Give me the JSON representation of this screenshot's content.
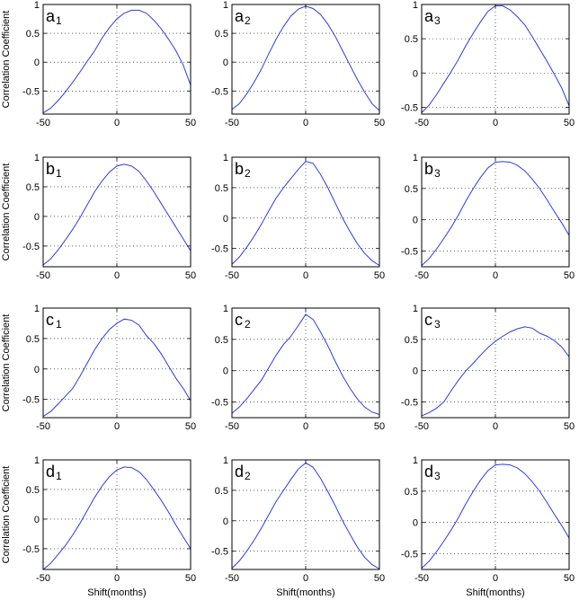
{
  "figure": {
    "ylabel": "Correlation Coefficient",
    "xlabel": "Shift(months)",
    "line_color": "#2b3fd8"
  },
  "chart_data": [
    {
      "type": "line",
      "panel": "a",
      "sub": "1",
      "xlim": [
        -50,
        50
      ],
      "ylim": [
        -0.9,
        1
      ],
      "xticks": [
        -50,
        0,
        50
      ],
      "yticks": [
        1,
        0.5,
        0,
        -0.5
      ],
      "grid": "dotted",
      "series": [
        {
          "x": [
            -50,
            -45,
            -40,
            -35,
            -30,
            -25,
            -20,
            -15,
            -10,
            -5,
            0,
            5,
            10,
            15,
            20,
            25,
            30,
            35,
            40,
            45,
            50
          ],
          "y": [
            -0.88,
            -0.8,
            -0.67,
            -0.52,
            -0.35,
            -0.17,
            0.02,
            0.2,
            0.42,
            0.6,
            0.75,
            0.85,
            0.9,
            0.9,
            0.85,
            0.73,
            0.58,
            0.4,
            0.2,
            -0.05,
            -0.4
          ]
        }
      ]
    },
    {
      "type": "line",
      "panel": "a",
      "sub": "2",
      "xlim": [
        -50,
        50
      ],
      "ylim": [
        -0.9,
        1
      ],
      "xticks": [
        -50,
        0,
        50
      ],
      "yticks": [
        1,
        0.5,
        0,
        -0.5
      ],
      "grid": "dotted",
      "series": [
        {
          "x": [
            -50,
            -45,
            -40,
            -35,
            -30,
            -25,
            -20,
            -15,
            -10,
            -5,
            0,
            5,
            10,
            15,
            20,
            25,
            30,
            35,
            40,
            45,
            50
          ],
          "y": [
            -0.82,
            -0.72,
            -0.55,
            -0.35,
            -0.12,
            0.15,
            0.4,
            0.62,
            0.8,
            0.92,
            0.97,
            0.93,
            0.83,
            0.66,
            0.45,
            0.2,
            -0.05,
            -0.3,
            -0.52,
            -0.72,
            -0.84
          ]
        }
      ]
    },
    {
      "type": "line",
      "panel": "a",
      "sub": "3",
      "xlim": [
        -50,
        50
      ],
      "ylim": [
        -0.6,
        1
      ],
      "xticks": [
        -50,
        0,
        50
      ],
      "yticks": [
        1,
        0.5,
        0,
        -0.5
      ],
      "grid": "dotted",
      "series": [
        {
          "x": [
            -50,
            -45,
            -40,
            -35,
            -30,
            -25,
            -20,
            -15,
            -10,
            -5,
            0,
            5,
            10,
            15,
            20,
            25,
            30,
            35,
            40,
            45,
            50
          ],
          "y": [
            -0.58,
            -0.47,
            -0.32,
            -0.15,
            0.02,
            0.2,
            0.4,
            0.58,
            0.75,
            0.9,
            0.98,
            0.98,
            0.92,
            0.82,
            0.7,
            0.53,
            0.35,
            0.17,
            -0.02,
            -0.22,
            -0.48
          ]
        }
      ]
    },
    {
      "type": "line",
      "panel": "b",
      "sub": "1",
      "xlim": [
        -50,
        50
      ],
      "ylim": [
        -0.85,
        1
      ],
      "xticks": [
        -50,
        0,
        50
      ],
      "yticks": [
        1,
        0.5,
        0,
        -0.5
      ],
      "grid": "dotted",
      "series": [
        {
          "x": [
            -50,
            -45,
            -40,
            -35,
            -30,
            -25,
            -20,
            -15,
            -10,
            -5,
            0,
            5,
            10,
            15,
            20,
            25,
            30,
            35,
            40,
            45,
            50
          ],
          "y": [
            -0.82,
            -0.72,
            -0.57,
            -0.4,
            -0.22,
            -0.02,
            0.2,
            0.42,
            0.6,
            0.75,
            0.85,
            0.88,
            0.85,
            0.76,
            0.6,
            0.42,
            0.22,
            0.02,
            -0.18,
            -0.38,
            -0.58
          ]
        }
      ]
    },
    {
      "type": "line",
      "panel": "b",
      "sub": "2",
      "xlim": [
        -50,
        50
      ],
      "ylim": [
        -0.8,
        1
      ],
      "xticks": [
        -50,
        0,
        50
      ],
      "yticks": [
        1,
        0.5,
        0,
        -0.5
      ],
      "grid": "dotted",
      "series": [
        {
          "x": [
            -50,
            -45,
            -40,
            -35,
            -30,
            -25,
            -20,
            -15,
            -10,
            -5,
            0,
            5,
            10,
            15,
            20,
            25,
            30,
            35,
            40,
            45,
            50
          ],
          "y": [
            -0.76,
            -0.64,
            -0.48,
            -0.3,
            -0.1,
            0.12,
            0.33,
            0.5,
            0.65,
            0.8,
            0.93,
            0.9,
            0.72,
            0.5,
            0.25,
            0,
            -0.22,
            -0.42,
            -0.58,
            -0.7,
            -0.78
          ]
        }
      ]
    },
    {
      "type": "line",
      "panel": "b",
      "sub": "3",
      "xlim": [
        -50,
        50
      ],
      "ylim": [
        -0.75,
        1
      ],
      "xticks": [
        -50,
        0,
        50
      ],
      "yticks": [
        1,
        0.5,
        0,
        -0.5
      ],
      "grid": "dotted",
      "series": [
        {
          "x": [
            -50,
            -45,
            -40,
            -35,
            -30,
            -25,
            -20,
            -15,
            -10,
            -5,
            0,
            5,
            10,
            15,
            20,
            25,
            30,
            35,
            40,
            45,
            50
          ],
          "y": [
            -0.73,
            -0.62,
            -0.47,
            -0.3,
            -0.12,
            0.08,
            0.3,
            0.5,
            0.68,
            0.83,
            0.92,
            0.93,
            0.92,
            0.87,
            0.78,
            0.65,
            0.5,
            0.32,
            0.13,
            -0.05,
            -0.25
          ]
        }
      ]
    },
    {
      "type": "line",
      "panel": "c",
      "sub": "1",
      "xlim": [
        -50,
        50
      ],
      "ylim": [
        -0.8,
        1
      ],
      "xticks": [
        -50,
        0,
        50
      ],
      "yticks": [
        1,
        0.5,
        0,
        -0.5
      ],
      "grid": "dotted",
      "series": [
        {
          "x": [
            -50,
            -45,
            -40,
            -35,
            -30,
            -25,
            -20,
            -15,
            -10,
            -5,
            0,
            5,
            10,
            15,
            20,
            25,
            30,
            35,
            40,
            45,
            50
          ],
          "y": [
            -0.78,
            -0.7,
            -0.58,
            -0.45,
            -0.32,
            -0.12,
            0.1,
            0.32,
            0.5,
            0.65,
            0.75,
            0.82,
            0.8,
            0.72,
            0.55,
            0.42,
            0.25,
            0.05,
            -0.15,
            -0.32,
            -0.52
          ]
        }
      ]
    },
    {
      "type": "line",
      "panel": "c",
      "sub": "2",
      "xlim": [
        -50,
        50
      ],
      "ylim": [
        -0.75,
        1
      ],
      "xticks": [
        -50,
        0,
        50
      ],
      "yticks": [
        1,
        0.5,
        0,
        -0.5
      ],
      "grid": "dotted",
      "series": [
        {
          "x": [
            -50,
            -45,
            -40,
            -35,
            -30,
            -25,
            -20,
            -15,
            -10,
            -5,
            0,
            5,
            10,
            15,
            20,
            25,
            30,
            35,
            40,
            45,
            50
          ],
          "y": [
            -0.68,
            -0.58,
            -0.45,
            -0.3,
            -0.15,
            0.05,
            0.25,
            0.42,
            0.55,
            0.72,
            0.9,
            0.82,
            0.62,
            0.4,
            0.15,
            -0.08,
            -0.28,
            -0.45,
            -0.58,
            -0.66,
            -0.7
          ]
        }
      ]
    },
    {
      "type": "line",
      "panel": "c",
      "sub": "3",
      "xlim": [
        -50,
        50
      ],
      "ylim": [
        -0.75,
        1
      ],
      "xticks": [
        -50,
        0,
        50
      ],
      "yticks": [
        1,
        0.5,
        0,
        -0.5
      ],
      "grid": "dotted",
      "series": [
        {
          "x": [
            -50,
            -45,
            -40,
            -35,
            -30,
            -25,
            -20,
            -15,
            -10,
            -5,
            0,
            5,
            10,
            15,
            20,
            25,
            30,
            35,
            40,
            45,
            50
          ],
          "y": [
            -0.72,
            -0.67,
            -0.6,
            -0.5,
            -0.32,
            -0.15,
            0.0,
            0.12,
            0.25,
            0.37,
            0.47,
            0.55,
            0.62,
            0.67,
            0.7,
            0.68,
            0.6,
            0.55,
            0.48,
            0.38,
            0.22
          ]
        }
      ]
    },
    {
      "type": "line",
      "panel": "d",
      "sub": "1",
      "xlim": [
        -50,
        50
      ],
      "ylim": [
        -0.85,
        1
      ],
      "xticks": [
        -50,
        0,
        50
      ],
      "yticks": [
        1,
        0.5,
        0,
        -0.5
      ],
      "grid": "dotted",
      "series": [
        {
          "x": [
            -50,
            -45,
            -40,
            -35,
            -30,
            -25,
            -20,
            -15,
            -10,
            -5,
            0,
            5,
            10,
            15,
            20,
            25,
            30,
            35,
            40,
            45,
            50
          ],
          "y": [
            -0.85,
            -0.75,
            -0.6,
            -0.45,
            -0.27,
            -0.07,
            0.15,
            0.37,
            0.56,
            0.72,
            0.83,
            0.88,
            0.87,
            0.8,
            0.67,
            0.5,
            0.32,
            0.12,
            -0.1,
            -0.3,
            -0.5
          ]
        }
      ]
    },
    {
      "type": "line",
      "panel": "d",
      "sub": "2",
      "xlim": [
        -50,
        50
      ],
      "ylim": [
        -0.8,
        1
      ],
      "xticks": [
        -50,
        0,
        50
      ],
      "yticks": [
        1,
        0.5,
        0,
        -0.5
      ],
      "grid": "dotted",
      "series": [
        {
          "x": [
            -50,
            -45,
            -40,
            -35,
            -30,
            -25,
            -20,
            -15,
            -10,
            -5,
            0,
            5,
            10,
            15,
            20,
            25,
            30,
            35,
            40,
            45,
            50
          ],
          "y": [
            -0.78,
            -0.66,
            -0.5,
            -0.32,
            -0.12,
            0.1,
            0.32,
            0.5,
            0.68,
            0.85,
            0.95,
            0.88,
            0.7,
            0.48,
            0.25,
            0.0,
            -0.22,
            -0.43,
            -0.6,
            -0.72,
            -0.79
          ]
        }
      ]
    },
    {
      "type": "line",
      "panel": "d",
      "sub": "3",
      "xlim": [
        -50,
        50
      ],
      "ylim": [
        -0.75,
        1
      ],
      "xticks": [
        -50,
        0,
        50
      ],
      "yticks": [
        1,
        0.5,
        0,
        -0.5
      ],
      "grid": "dotted",
      "series": [
        {
          "x": [
            -50,
            -45,
            -40,
            -35,
            -30,
            -25,
            -20,
            -15,
            -10,
            -5,
            0,
            5,
            10,
            15,
            20,
            25,
            30,
            35,
            40,
            45,
            50
          ],
          "y": [
            -0.73,
            -0.62,
            -0.47,
            -0.3,
            -0.12,
            0.08,
            0.3,
            0.5,
            0.68,
            0.83,
            0.92,
            0.93,
            0.92,
            0.87,
            0.78,
            0.65,
            0.5,
            0.32,
            0.13,
            -0.05,
            -0.25
          ]
        }
      ]
    }
  ]
}
